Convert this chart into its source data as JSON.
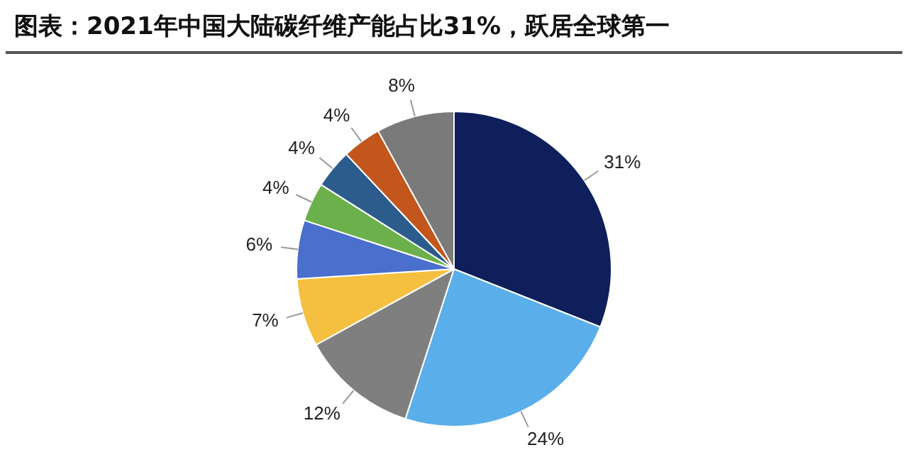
{
  "chart_data": {
    "type": "pie",
    "title": "图表：2021年中国大陆碳纤维产能占比31%，跃居全球第一",
    "categories": [
      null,
      null,
      null,
      null,
      null,
      null,
      null,
      null,
      null
    ],
    "values": [
      31,
      24,
      12,
      7,
      6,
      4,
      4,
      4,
      8
    ],
    "colors": [
      "#0e1f5b",
      "#5aaeea",
      "#7f7f7f",
      "#f5c040",
      "#4a6fcc",
      "#6bb04a",
      "#2b5c8c",
      "#c2561c",
      "#7a7a7a"
    ],
    "value_labels": [
      "31%",
      "24%",
      "12%",
      "7%",
      "6%",
      "4%",
      "4%",
      "4%",
      "8%"
    ],
    "legend": false
  }
}
